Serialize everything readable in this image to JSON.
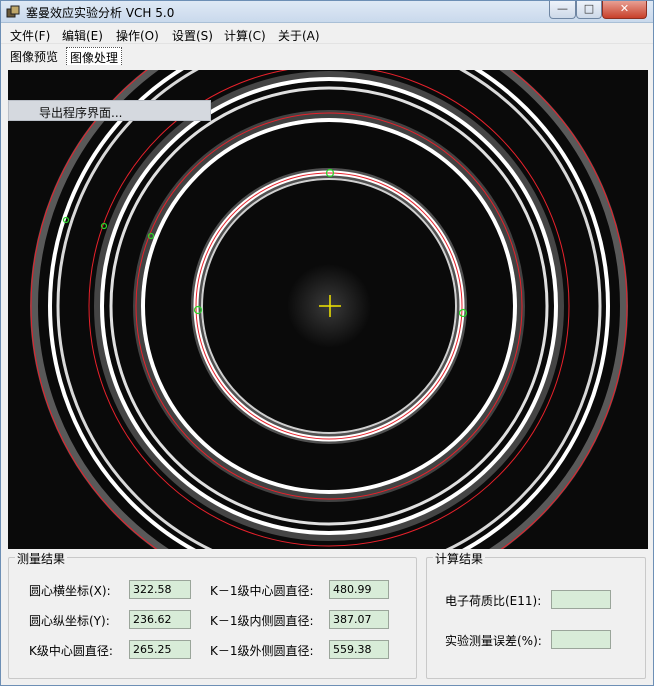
{
  "window": {
    "title": "塞曼效应实验分析 VCH 5.0",
    "controls": {
      "minimize": "—",
      "maximize": "□",
      "close": "✕"
    }
  },
  "menu": {
    "items": [
      "文件(F)",
      "编辑(E)",
      "操作(O)",
      "设置(S)",
      "计算(C)",
      "关于(A)"
    ]
  },
  "tabs": {
    "preview": "图像预览",
    "process": "图像处理"
  },
  "image_panel": {
    "context_menu_item": "导出程序界面..."
  },
  "measure_group": {
    "title": "测量结果",
    "center_x_label": "圆心横坐标(X):",
    "center_x_value": "322.58",
    "center_y_label": "圆心纵坐标(Y):",
    "center_y_value": "236.62",
    "k_center_label": "K级中心圆直径:",
    "k_center_value": "265.25",
    "k1_center_label": "K－1级中心圆直径:",
    "k1_center_value": "480.99",
    "k1_inner_label": "K－1级内侧圆直径:",
    "k1_inner_value": "387.07",
    "k1_outer_label": "K－1级外侧圆直径:",
    "k1_outer_value": "559.38"
  },
  "calc_group": {
    "title": "计算结果",
    "em_ratio_label": "电子荷质比(E11):",
    "em_ratio_value": "",
    "error_label": "实验测量误差(%):",
    "error_value": ""
  },
  "colors": {
    "fit_circle": "#e8212b",
    "marker": "#2bd62b",
    "crosshair": "#f2e600"
  }
}
